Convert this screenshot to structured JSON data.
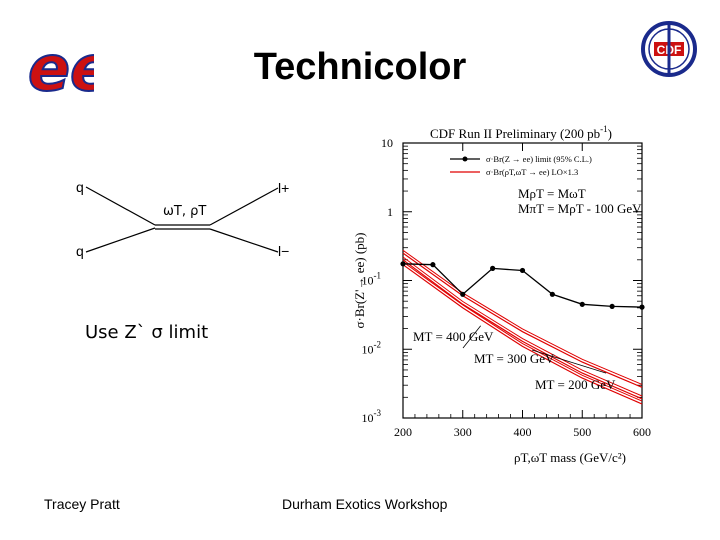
{
  "slide": {
    "title": "Technicolor",
    "note": "Use Z` σ limit",
    "footer_left": "Tracey Pratt",
    "footer_center": "Durham Exotics Workshop",
    "logo_left_text": "ee",
    "logo_right_text": "CDF"
  },
  "feynman": {
    "q_top": "q",
    "q_bottom": "q",
    "mediator": "ωT, ρT",
    "lepton_top": "l+",
    "lepton_bottom": "l−"
  },
  "colors": {
    "limit": "#000000",
    "theory": "#e00000",
    "logo_red": "#cc1111",
    "logo_blue": "#1a2a8c"
  },
  "chart_data": {
    "type": "line",
    "title": "CDF Run II Preliminary (200 pb",
    "title_sup": "-1",
    "title_end": ")",
    "xlabel": "ρT,ωT mass (GeV/c²)",
    "ylabel": "σ·Br(Z'→ ee) (pb)",
    "xlim": [
      200,
      600
    ],
    "ylim_log10": [
      -3,
      1
    ],
    "log_y": true,
    "x_ticks": [
      "200",
      "300",
      "400",
      "500",
      "600"
    ],
    "y_ticks": [
      {
        "base": "10",
        "exp": "-3",
        "value": -3
      },
      {
        "base": "10",
        "exp": "-2",
        "value": -2
      },
      {
        "base": "10",
        "exp": "-1",
        "value": -1
      },
      {
        "base": "1",
        "exp": "",
        "value": 0
      },
      {
        "base": "10",
        "exp": "",
        "value": 1
      }
    ],
    "legend": [
      {
        "text": "σ·Br(Z → ee) limit (95% C.L.)",
        "kind": "limit"
      },
      {
        "text": "σ·Br(ρT,ωT → ee) LO×1.3",
        "kind": "theory"
      }
    ],
    "mass_relation_1": "MρT = MωT",
    "mass_relation_2": "MπT = MρT - 100 GeV",
    "limit": {
      "name": "σ·Br(Z → ee) limit (95% C.L.)",
      "x": [
        200,
        250,
        300,
        350,
        400,
        450,
        500,
        550,
        600
      ],
      "y": [
        0.175,
        0.17,
        0.063,
        0.15,
        0.14,
        0.063,
        0.045,
        0.042,
        0.041
      ]
    },
    "theory": [
      {
        "label": "MT = 400 GeV",
        "x": [
          200,
          300,
          400,
          500,
          600
        ],
        "y": [
          0.25,
          0.06,
          0.018,
          0.0065,
          0.0028
        ]
      },
      {
        "label": "MT = 300 GeV",
        "x": [
          200,
          300,
          400,
          500,
          600
        ],
        "y": [
          0.2,
          0.045,
          0.013,
          0.0045,
          0.0019
        ]
      },
      {
        "label": "MT = 200 GeV",
        "x": [
          200,
          300,
          400,
          500,
          600
        ],
        "y": [
          0.17,
          0.04,
          0.011,
          0.0038,
          0.0016
        ]
      }
    ]
  }
}
